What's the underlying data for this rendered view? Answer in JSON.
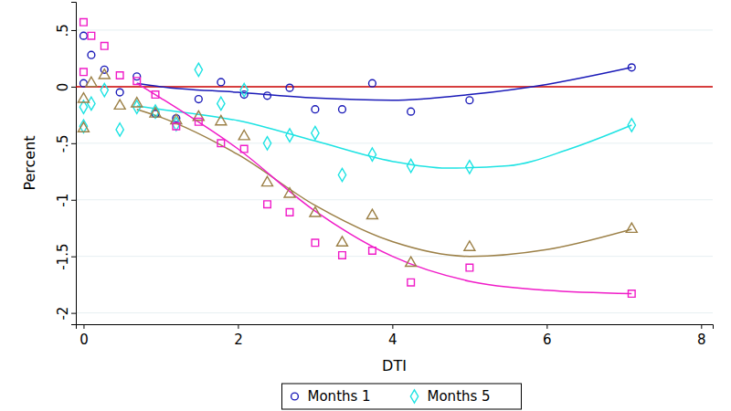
{
  "chart_data": {
    "type": "scatter",
    "x_label": "DTI",
    "y_label": "Percent",
    "xlim": [
      -0.1,
      8.15
    ],
    "ylim": [
      -2.1,
      0.75
    ],
    "xticks": [
      0,
      2,
      4,
      6,
      8
    ],
    "yticks": [
      {
        "value": 0.5,
        "label": ".5"
      },
      0,
      {
        "value": -0.5,
        "label": "-.5"
      },
      -1,
      {
        "value": -1.5,
        "label": "-1.5"
      },
      -2
    ],
    "grid": true,
    "legend": "bottom",
    "series": [
      {
        "name": "Months 1",
        "type": "scatter",
        "marker": "circle",
        "color": "#1a1ab8",
        "x": [
          0,
          0,
          0.1,
          0.27,
          0.47,
          0.69,
          0.93,
          1.2,
          1.49,
          1.78,
          2.08,
          2.38,
          2.67,
          3.0,
          3.35,
          3.74,
          4.24,
          5.0,
          7.1
        ],
        "values": [
          0.45,
          0.03,
          0.28,
          0.15,
          -0.05,
          0.09,
          -0.24,
          -0.28,
          -0.11,
          0.04,
          -0.07,
          -0.08,
          -0.01,
          -0.2,
          -0.2,
          0.03,
          -0.22,
          -0.12,
          0.17
        ]
      },
      {
        "name": "Months 5",
        "type": "scatter",
        "marker": "diamond",
        "color": "#1ee3e3",
        "x": [
          0,
          0,
          0.1,
          0.27,
          0.47,
          0.69,
          0.93,
          1.2,
          1.49,
          1.78,
          2.08,
          2.38,
          2.67,
          3.0,
          3.35,
          3.74,
          4.24,
          5.0,
          7.1
        ],
        "values": [
          -0.18,
          -0.35,
          -0.15,
          -0.03,
          -0.38,
          -0.18,
          -0.22,
          -0.33,
          0.15,
          -0.15,
          -0.03,
          -0.5,
          -0.43,
          -0.41,
          -0.78,
          -0.6,
          -0.7,
          -0.71,
          -0.34
        ]
      },
      {
        "type": "scatter",
        "marker": "triangle",
        "color": "#9c8047",
        "x": [
          0,
          0,
          0.1,
          0.27,
          0.47,
          0.69,
          0.93,
          1.2,
          1.49,
          1.78,
          2.08,
          2.38,
          2.67,
          3.0,
          3.35,
          3.74,
          4.24,
          5.0,
          7.1
        ],
        "values": [
          -0.11,
          -0.37,
          0.03,
          0.1,
          -0.17,
          -0.15,
          -0.24,
          -0.3,
          -0.27,
          -0.31,
          -0.44,
          -0.85,
          -0.95,
          -1.12,
          -1.38,
          -1.14,
          -1.56,
          -1.42,
          -1.26
        ]
      },
      {
        "type": "scatter",
        "marker": "square",
        "color": "#f01cc8",
        "x": [
          0,
          0,
          0.1,
          0.27,
          0.47,
          0.69,
          0.93,
          1.2,
          1.49,
          1.78,
          2.08,
          2.38,
          2.67,
          3.0,
          3.35,
          3.74,
          4.24,
          5.0,
          7.1
        ],
        "values": [
          0.57,
          0.13,
          0.45,
          0.36,
          0.1,
          0.05,
          -0.07,
          -0.35,
          -0.31,
          -0.5,
          -0.55,
          -1.04,
          -1.11,
          -1.38,
          -1.49,
          -1.45,
          -1.73,
          -1.6,
          -1.83
        ]
      },
      {
        "type": "line",
        "line_style": "solid",
        "color": "#cc0000",
        "x": [
          -0.1,
          8.15
        ],
        "values": [
          0,
          0
        ]
      },
      {
        "type": "line",
        "line_style": "solid",
        "color": "#1a1ab8",
        "x": [
          0.69,
          1,
          2,
          3,
          4,
          5,
          6,
          7.1
        ],
        "values": [
          0.03,
          0.0,
          -0.05,
          -0.1,
          -0.12,
          -0.07,
          0.02,
          0.17
        ]
      },
      {
        "type": "line",
        "line_style": "solid",
        "color": "#1ee3e3",
        "x": [
          0.69,
          1,
          2,
          3,
          4,
          4.7,
          5.5,
          6.3,
          7.1
        ],
        "values": [
          -0.17,
          -0.2,
          -0.3,
          -0.48,
          -0.66,
          -0.72,
          -0.7,
          -0.55,
          -0.34
        ]
      },
      {
        "type": "line",
        "line_style": "solid",
        "color": "#9c8047",
        "x": [
          0.69,
          1,
          2,
          3,
          4,
          5,
          6,
          7.1
        ],
        "values": [
          -0.2,
          -0.27,
          -0.6,
          -1.05,
          -1.37,
          -1.5,
          -1.44,
          -1.26
        ]
      },
      {
        "type": "line",
        "line_style": "solid",
        "color": "#f01cc8",
        "x": [
          0.69,
          1,
          2,
          3,
          4,
          5,
          6,
          7.1
        ],
        "values": [
          0.03,
          -0.1,
          -0.55,
          -1.1,
          -1.5,
          -1.72,
          -1.8,
          -1.83
        ]
      }
    ]
  }
}
